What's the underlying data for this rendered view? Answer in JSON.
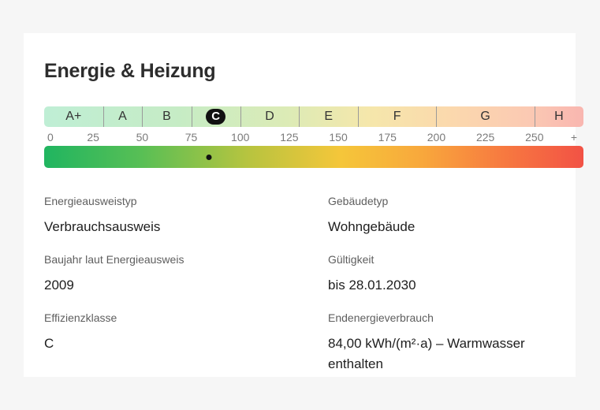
{
  "section": {
    "title": "Energie & Heizung"
  },
  "classes": [
    {
      "label": "A+",
      "name": "class-a-plus",
      "active": false
    },
    {
      "label": "A",
      "name": "class-a",
      "active": false
    },
    {
      "label": "B",
      "name": "class-b",
      "active": false
    },
    {
      "label": "C",
      "name": "class-c",
      "active": true
    },
    {
      "label": "D",
      "name": "class-d",
      "active": false
    },
    {
      "label": "E",
      "name": "class-e",
      "active": false
    },
    {
      "label": "F",
      "name": "class-f",
      "active": false
    },
    {
      "label": "G",
      "name": "class-g",
      "active": false
    },
    {
      "label": "H",
      "name": "class-h",
      "active": false
    }
  ],
  "class_boundaries": [
    30,
    50,
    75,
    100,
    130,
    160,
    200,
    250
  ],
  "scale": {
    "ticks": [
      "0",
      "25",
      "50",
      "75",
      "100",
      "125",
      "150",
      "175",
      "200",
      "225",
      "250",
      "+"
    ],
    "max": 275
  },
  "consumption_value": 84,
  "details": {
    "type_label": "Energieausweistyp",
    "type_value": "Verbrauchsausweis",
    "building_label": "Gebäudetyp",
    "building_value": "Wohngebäude",
    "year_label": "Baujahr laut Energieausweis",
    "year_value": "2009",
    "validity_label": "Gültigkeit",
    "validity_value": "bis 28.01.2030",
    "class_label": "Effizienzklasse",
    "class_value": "C",
    "consumption_label": "Endenergieverbrauch",
    "consumption_line1": "84,00 kWh/(m²·a) – Warmwasser",
    "consumption_line2": "enthalten"
  },
  "colors": {
    "bar_start": "#20b560",
    "bar_mid": "#f5c63a",
    "bar_end": "#f25245",
    "active_badge": "#111111"
  }
}
